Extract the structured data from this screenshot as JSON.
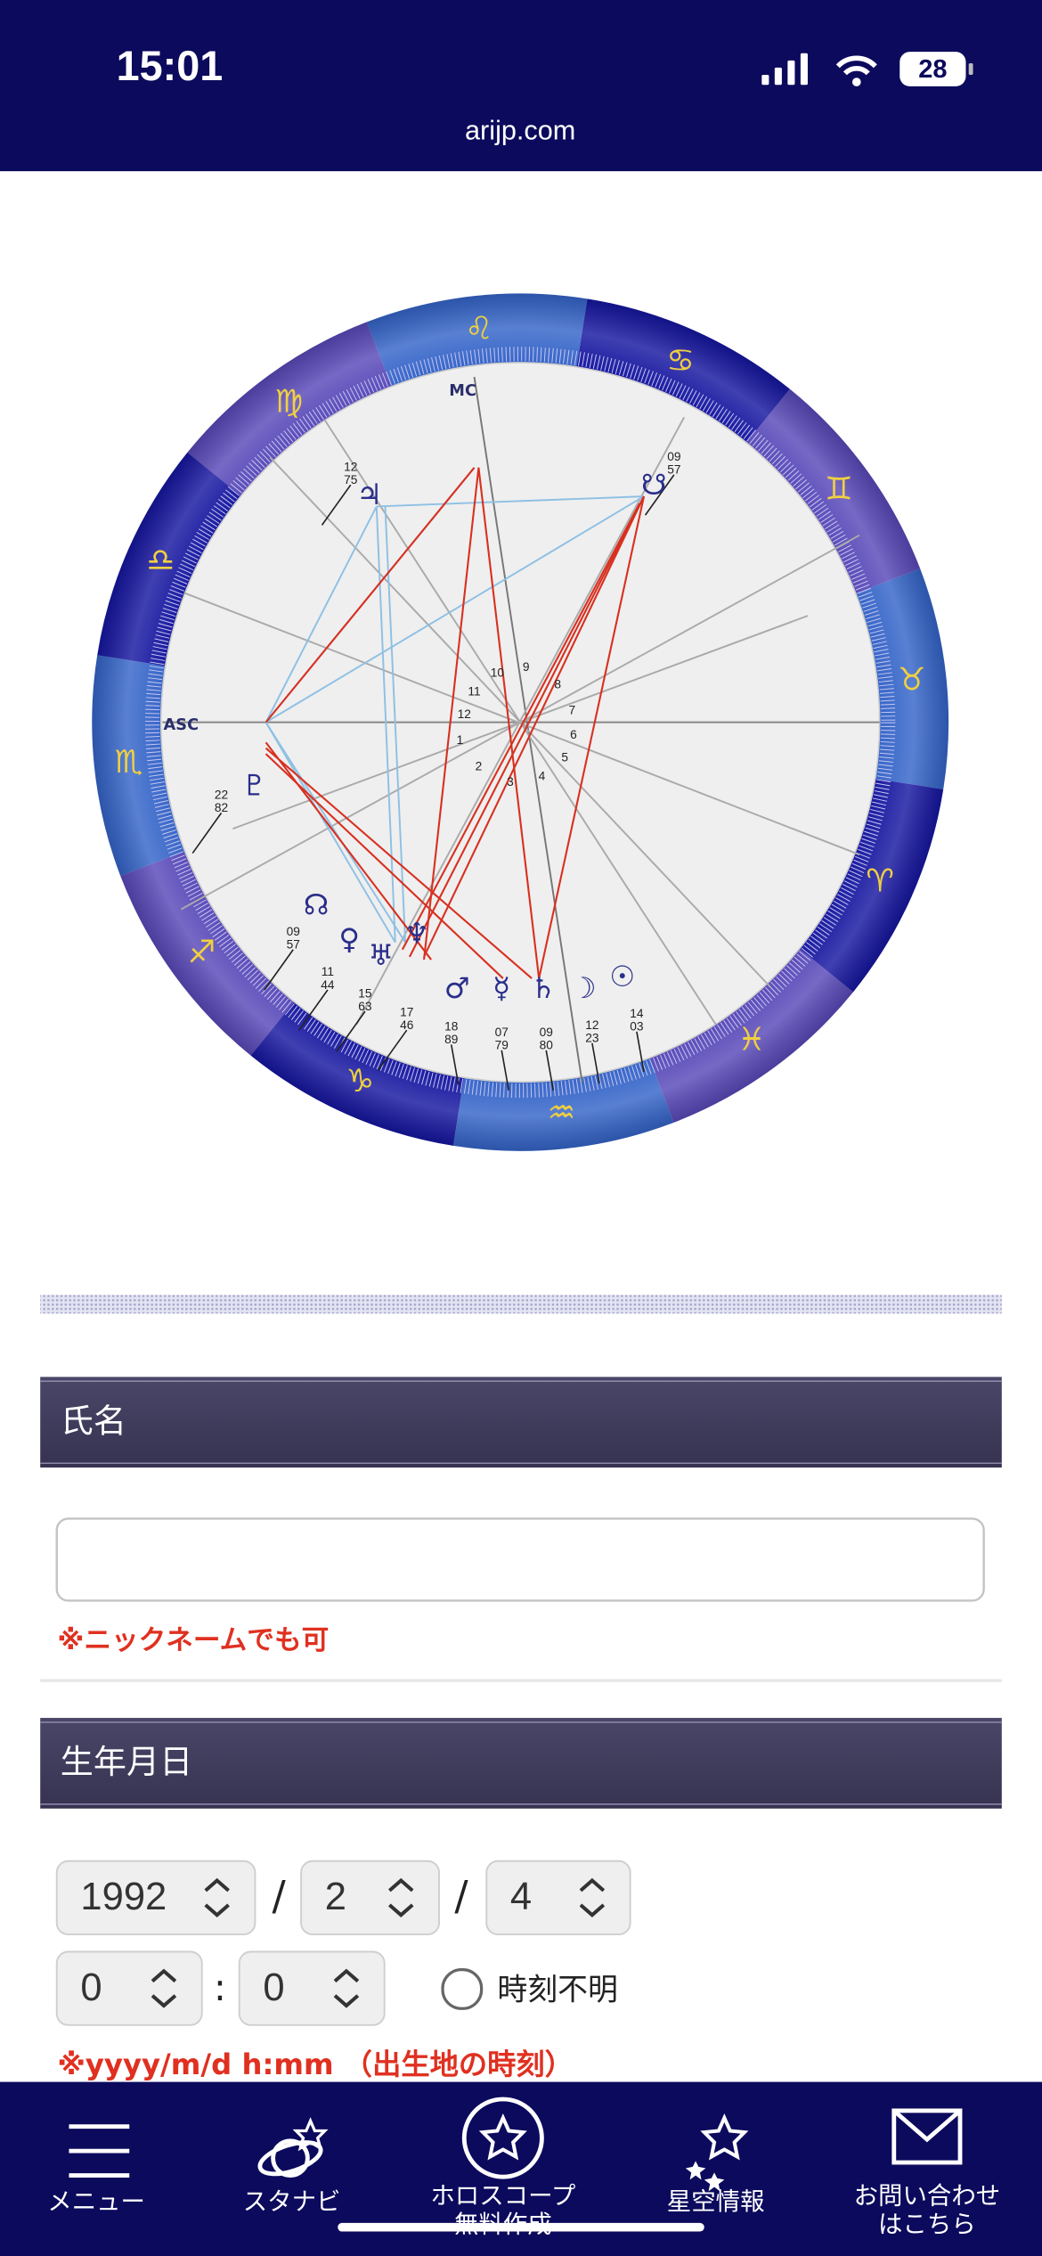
{
  "status_bar": {
    "time": "15:01",
    "battery": "28",
    "url": "arijp.com"
  },
  "chart": {
    "signs": [
      "♈",
      "♉",
      "♊",
      "♋",
      "♌",
      "♍",
      "♎",
      "♏",
      "♐",
      "♑",
      "♒",
      "♓"
    ],
    "asc": "ASC",
    "mc": "MC",
    "houses": [
      "1",
      "2",
      "3",
      "4",
      "5",
      "6",
      "7",
      "8",
      "9",
      "10",
      "11",
      "12"
    ],
    "planets": [
      {
        "glyph": "♃",
        "deg": "12",
        "min": "75"
      },
      {
        "glyph": "☋",
        "deg": "09",
        "min": "57"
      },
      {
        "glyph": "♇",
        "deg": "22",
        "min": "82"
      },
      {
        "glyph": "☊",
        "deg": "09",
        "min": "57"
      },
      {
        "glyph": "♀",
        "deg": "11",
        "min": "44"
      },
      {
        "glyph": "♅",
        "deg": "15",
        "min": "63"
      },
      {
        "glyph": "♆",
        "deg": "17",
        "min": "46"
      },
      {
        "glyph": "♂",
        "deg": "18",
        "min": "89"
      },
      {
        "glyph": "☿",
        "deg": "07",
        "min": "79"
      },
      {
        "glyph": "♄",
        "deg": "09",
        "min": "80"
      },
      {
        "glyph": "☽",
        "deg": "12",
        "min": "23"
      },
      {
        "glyph": "☉",
        "deg": "14",
        "min": "03"
      }
    ]
  },
  "form": {
    "name_header": "氏名",
    "name_note": "※ニックネームでも可",
    "birth_header": "生年月日",
    "year": "1992",
    "month": "2",
    "day": "4",
    "hour": "0",
    "minute": "0",
    "sep_date": "/",
    "sep_time": ":",
    "unknown_time": "時刻不明",
    "birth_note": "※yyyy/m/d h:mm （出生地の時刻）"
  },
  "nav": [
    {
      "lines": [
        "メニュー"
      ]
    },
    {
      "lines": [
        "スタナビ"
      ]
    },
    {
      "lines": [
        "ホロスコープ",
        "無料作成"
      ]
    },
    {
      "lines": [
        "星空情報"
      ]
    },
    {
      "lines": [
        "お問い合わせ",
        "はこちら"
      ]
    }
  ]
}
